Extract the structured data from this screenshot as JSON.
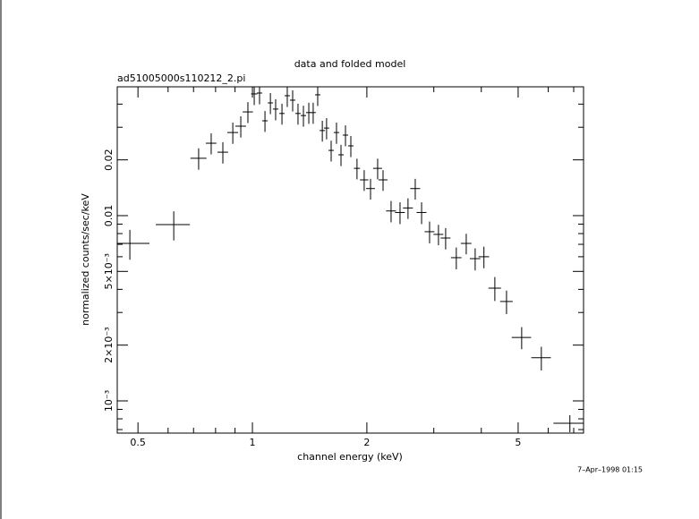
{
  "chart_data": {
    "type": "errorbar",
    "title": "data and folded model",
    "subtitle": "ad51005000s110212_2.pi",
    "x_label": "channel energy (keV)",
    "y_label": "normalized counts/sec/keV",
    "timestamp": "7–Apr–1998 01:15",
    "xlog": true,
    "ylog": true,
    "color": "#000000",
    "xlim": [
      0.441,
      7.43
    ],
    "ylim": [
      0.00067,
      0.0496
    ],
    "xticks": [
      0.5,
      1,
      2,
      5
    ],
    "xminorticks": [
      0.6,
      0.7,
      0.8,
      0.9,
      3,
      4,
      6,
      7
    ],
    "yticks": [
      {
        "value": 0.001,
        "label": "10⁻³"
      },
      {
        "value": 0.002,
        "label": "2×10⁻³"
      },
      {
        "value": 0.005,
        "label": "5×10⁻³"
      },
      0.01,
      0.02
    ],
    "yminorticks": [
      0.0007,
      0.0008,
      0.0009,
      0.003,
      0.004,
      0.006,
      0.007,
      0.008,
      0.009,
      0.03,
      0.04
    ],
    "x": [
      0.476,
      0.621,
      0.722,
      0.779,
      0.836,
      0.888,
      0.932,
      0.973,
      1.011,
      1.044,
      1.079,
      1.115,
      1.151,
      1.196,
      1.235,
      1.276,
      1.318,
      1.362,
      1.407,
      1.445,
      1.485,
      1.527,
      1.567,
      1.611,
      1.664,
      1.71,
      1.757,
      1.815,
      1.884,
      1.968,
      2.045,
      2.135,
      2.206,
      2.316,
      2.445,
      2.566,
      2.681,
      2.786,
      2.924,
      3.086,
      3.223,
      3.438,
      3.651,
      3.854,
      4.064,
      4.342,
      4.66,
      5.108,
      5.754,
      6.84
    ],
    "xerr": [
      0.06,
      0.064,
      0.035,
      0.025,
      0.027,
      0.029,
      0.03,
      0.03,
      0.019,
      0.017,
      0.018,
      0.018,
      0.019,
      0.019,
      0.02,
      0.021,
      0.021,
      0.022,
      0.023,
      0.023,
      0.024,
      0.025,
      0.025,
      0.026,
      0.027,
      0.028,
      0.029,
      0.03,
      0.035,
      0.05,
      0.055,
      0.058,
      0.06,
      0.069,
      0.073,
      0.077,
      0.08,
      0.083,
      0.087,
      0.092,
      0.096,
      0.11,
      0.117,
      0.123,
      0.13,
      0.165,
      0.177,
      0.3,
      0.34,
      0.65
    ],
    "values": [
      0.00708,
      0.00895,
      0.0204,
      0.0246,
      0.022,
      0.0281,
      0.0304,
      0.0363,
      0.0454,
      0.0459,
      0.0325,
      0.0406,
      0.0376,
      0.0356,
      0.0444,
      0.042,
      0.0356,
      0.0347,
      0.036,
      0.036,
      0.0449,
      0.0288,
      0.0297,
      0.0225,
      0.0281,
      0.0213,
      0.0272,
      0.0238,
      0.018,
      0.0156,
      0.014,
      0.018,
      0.0156,
      0.0106,
      0.0104,
      0.011,
      0.014,
      0.0104,
      0.00819,
      0.00792,
      0.00757,
      0.00593,
      0.00708,
      0.00586,
      0.006,
      0.00406,
      0.00344,
      0.0022,
      0.00171,
      0.000757
    ],
    "yerr": [
      0.0013,
      0.0016,
      0.0027,
      0.0032,
      0.0029,
      0.0037,
      0.004,
      0.0047,
      0.0059,
      0.006,
      0.0042,
      0.0053,
      0.0049,
      0.0046,
      0.0058,
      0.0055,
      0.0046,
      0.0045,
      0.0047,
      0.0047,
      0.0058,
      0.0037,
      0.0039,
      0.0029,
      0.0037,
      0.0028,
      0.0035,
      0.0031,
      0.0023,
      0.002,
      0.0018,
      0.0023,
      0.002,
      0.0014,
      0.0014,
      0.0014,
      0.0018,
      0.0014,
      0.0011,
      0.001,
      0.001,
      0.0008,
      0.0009,
      0.0008,
      0.0008,
      0.0006,
      0.0005,
      0.0003,
      0.00025,
      8e-05
    ]
  }
}
